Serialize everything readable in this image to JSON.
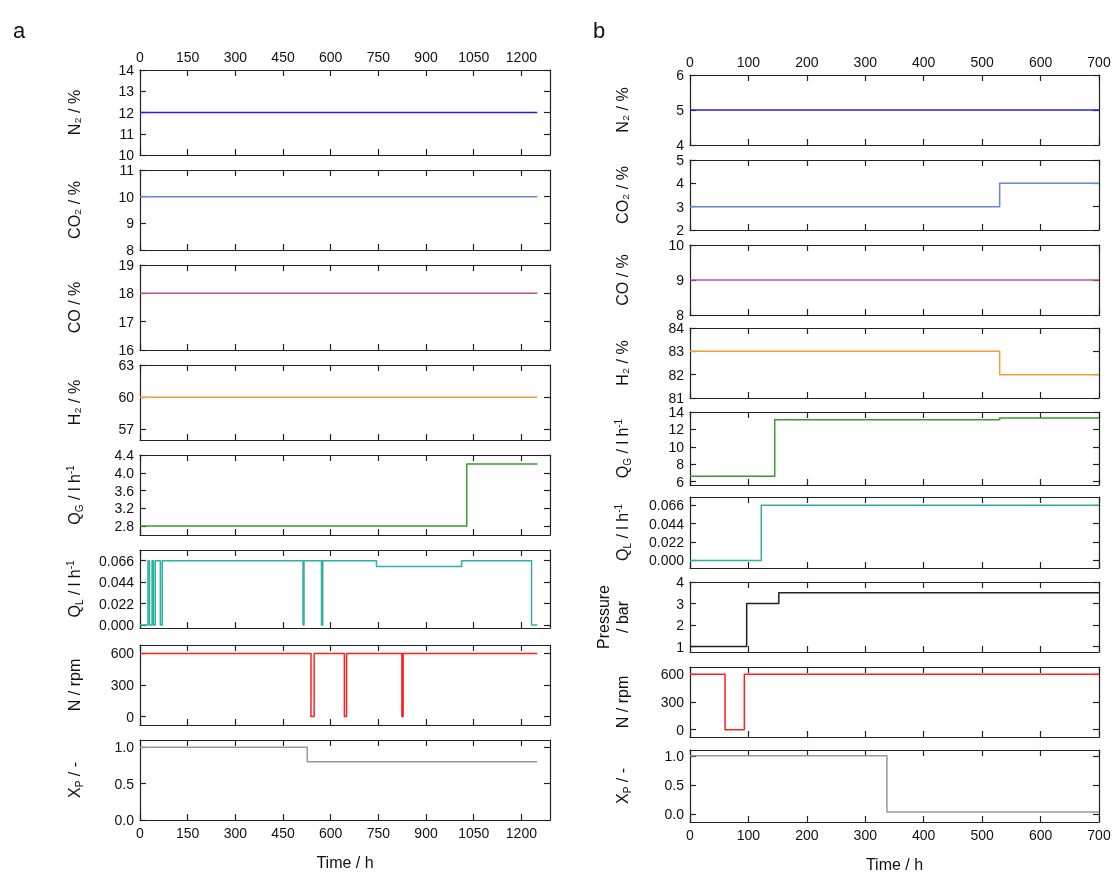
{
  "chart_data": [
    {
      "type": "step",
      "title": "a",
      "ylabel": "N₂ / %",
      "x2lim": [
        0,
        1290
      ],
      "x2ticks": [
        0,
        150,
        300,
        450,
        600,
        750,
        900,
        1050,
        1200
      ],
      "xlim": [
        0,
        1290
      ],
      "xticks": [
        0,
        150,
        300,
        450,
        600,
        750,
        900,
        1050,
        1200
      ],
      "tick_labels": "y",
      "ylim": [
        10,
        14
      ],
      "yticks": [
        10,
        11,
        12,
        13,
        14
      ],
      "x": [
        0,
        1250
      ],
      "values": [
        12,
        12
      ],
      "color": "#2020f0"
    },
    {
      "type": "step",
      "ylabel": "CO₂ / %",
      "xlim": [
        0,
        1290
      ],
      "xticks": [
        0,
        150,
        300,
        450,
        600,
        750,
        900,
        1050,
        1200
      ],
      "tick_labels": "y",
      "ylim": [
        8,
        11
      ],
      "yticks": [
        8,
        9,
        10,
        11
      ],
      "x": [
        0,
        1250
      ],
      "values": [
        10,
        10
      ],
      "color": "#6688cc"
    },
    {
      "type": "step",
      "ylabel": "CO / %",
      "xlim": [
        0,
        1290
      ],
      "xticks": [
        0,
        150,
        300,
        450,
        600,
        750,
        900,
        1050,
        1200
      ],
      "tick_labels": "y",
      "ylim": [
        16,
        19
      ],
      "yticks": [
        16,
        17,
        18,
        19
      ],
      "x": [
        0,
        1250
      ],
      "values": [
        18,
        18
      ],
      "color": "#c0509a"
    },
    {
      "type": "step",
      "ylabel": "H₂ / %",
      "xlim": [
        0,
        1290
      ],
      "xticks": [
        0,
        150,
        300,
        450,
        600,
        750,
        900,
        1050,
        1200
      ],
      "tick_labels": "y",
      "ylim": [
        56,
        63
      ],
      "yticks": [
        57,
        60,
        63
      ],
      "x": [
        0,
        1250
      ],
      "values": [
        60,
        60
      ],
      "color": "#f0a030"
    },
    {
      "type": "step",
      "ylabel": "Q$_{G}$ / l h$^{-1}$",
      "xlim": [
        0,
        1290
      ],
      "xticks": [
        0,
        150,
        300,
        450,
        600,
        750,
        900,
        1050,
        1200
      ],
      "tick_labels": "y",
      "ylim": [
        2.6,
        4.4
      ],
      "yticks": [
        2.8,
        3.2,
        3.6,
        {
          "value": 4,
          "label": "4.0"
        },
        4.4
      ],
      "x": [
        0,
        1028,
        1250
      ],
      "values": [
        2.8,
        4.2,
        4.2
      ],
      "color": "#3c9a2c"
    },
    {
      "type": "step",
      "ylabel": "Q$_{L}$ / l h$^{-1}$",
      "xlim": [
        0,
        1290
      ],
      "xticks": [
        0,
        150,
        300,
        450,
        600,
        750,
        900,
        1050,
        1200
      ],
      "tick_labels": "y",
      "ylim": [
        -0.003,
        0.077
      ],
      "yticks": [
        {
          "value": 0,
          "label": "0.000"
        },
        0.022,
        0.044,
        0.066
      ],
      "x": [
        0,
        25,
        30,
        38,
        42,
        48,
        64,
        70,
        513,
        516,
        571,
        575,
        744,
        1012,
        1232,
        1250
      ],
      "values": [
        0,
        0.066,
        0,
        0.066,
        0,
        0.066,
        0,
        0.066,
        0,
        0.066,
        0,
        0.066,
        0.06,
        0.066,
        0,
        0
      ],
      "color": "#30b0a0"
    },
    {
      "type": "step",
      "ylabel": "N / rpm",
      "xlim": [
        0,
        1290
      ],
      "xticks": [
        0,
        150,
        300,
        450,
        600,
        750,
        900,
        1050,
        1200
      ],
      "tick_labels": "y",
      "ylim": [
        -80,
        680
      ],
      "yticks": [
        0,
        300,
        600
      ],
      "x": [
        0,
        538,
        548,
        643,
        650,
        824,
        828,
        1250
      ],
      "values": [
        600,
        0,
        600,
        0,
        600,
        0,
        600,
        600
      ],
      "color": "#ff2020"
    },
    {
      "type": "step",
      "ylabel": "X$_{P}$ / -",
      "xlabel": "Time / h",
      "xlim": [
        0,
        1290
      ],
      "xticks": [
        0,
        150,
        300,
        450,
        600,
        750,
        900,
        1050,
        1200
      ],
      "ylim": [
        0,
        1.1
      ],
      "yticks": [
        {
          "value": 0,
          "label": "0.0"
        },
        0.5,
        {
          "value": 1,
          "label": "1.0"
        }
      ],
      "x": [
        0,
        526,
        1250
      ],
      "values": [
        1,
        0.8,
        0.8
      ],
      "color": "#999999"
    },
    {
      "type": "step",
      "title": "b",
      "ylabel": "N₂ / %",
      "x2lim": [
        0,
        700
      ],
      "x2ticks": [
        0,
        100,
        200,
        300,
        400,
        500,
        600,
        700
      ],
      "xlim": [
        0,
        700
      ],
      "xticks": [
        0,
        100,
        200,
        300,
        400,
        500,
        600,
        700
      ],
      "tick_labels": "y",
      "ylim": [
        4,
        6
      ],
      "yticks": [
        4,
        5,
        6
      ],
      "x": [
        0,
        700
      ],
      "values": [
        5,
        5
      ],
      "color": "#2020f0"
    },
    {
      "type": "step",
      "ylabel": "CO₂ / %",
      "xlim": [
        0,
        700
      ],
      "xticks": [
        0,
        100,
        200,
        300,
        400,
        500,
        600,
        700
      ],
      "tick_labels": "y",
      "ylim": [
        2,
        5
      ],
      "yticks": [
        2,
        3,
        4,
        5
      ],
      "x": [
        0,
        530,
        700
      ],
      "values": [
        3,
        4,
        4
      ],
      "color": "#6688cc"
    },
    {
      "type": "step",
      "ylabel": "CO / %",
      "xlim": [
        0,
        700
      ],
      "xticks": [
        0,
        100,
        200,
        300,
        400,
        500,
        600,
        700
      ],
      "tick_labels": "y",
      "ylim": [
        8,
        10
      ],
      "yticks": [
        8,
        9,
        10
      ],
      "x": [
        0,
        700
      ],
      "values": [
        9,
        9
      ],
      "color": "#c0509a"
    },
    {
      "type": "step",
      "ylabel": "H₂ / %",
      "xlim": [
        0,
        700
      ],
      "xticks": [
        0,
        100,
        200,
        300,
        400,
        500,
        600,
        700
      ],
      "tick_labels": "y",
      "ylim": [
        81,
        84
      ],
      "yticks": [
        81,
        82,
        83,
        84
      ],
      "x": [
        0,
        530,
        700
      ],
      "values": [
        83,
        82,
        82
      ],
      "color": "#f0a030"
    },
    {
      "type": "step",
      "ylabel": "Q$_{G}$ / l h$^{-1}$",
      "xlim": [
        0,
        700
      ],
      "xticks": [
        0,
        100,
        200,
        300,
        400,
        500,
        600,
        700
      ],
      "tick_labels": "y",
      "ylim": [
        5.6,
        14
      ],
      "yticks": [
        6,
        8,
        10,
        12,
        14
      ],
      "x": [
        0,
        145,
        530,
        700
      ],
      "values": [
        6.6,
        13.1,
        13.3,
        13.3
      ],
      "color": "#3c9a2c"
    },
    {
      "type": "step",
      "ylabel": "Q$_{L}$ / l h$^{-1}$",
      "xlim": [
        0,
        700
      ],
      "xticks": [
        0,
        100,
        200,
        300,
        400,
        500,
        600,
        700
      ],
      "tick_labels": "y",
      "ylim": [
        -0.009,
        0.076
      ],
      "yticks": [
        {
          "value": 0,
          "label": "0.000"
        },
        0.022,
        0.044,
        0.066
      ],
      "x": [
        0,
        122,
        700
      ],
      "values": [
        0,
        0.066,
        0.066
      ],
      "color": "#30b0a0"
    },
    {
      "type": "step",
      "ylabel": "Pressure / bar",
      "xlim": [
        0,
        700
      ],
      "xticks": [
        0,
        100,
        200,
        300,
        400,
        500,
        600,
        700
      ],
      "tick_labels": "y",
      "ylim": [
        0.75,
        4
      ],
      "yticks": [
        1,
        2,
        3,
        4
      ],
      "x": [
        0,
        97,
        152,
        700
      ],
      "values": [
        1,
        3,
        3.5,
        3.5
      ],
      "color": "#222222"
    },
    {
      "type": "step",
      "ylabel": "N / rpm",
      "xlim": [
        0,
        700
      ],
      "xticks": [
        0,
        100,
        200,
        300,
        400,
        500,
        600,
        700
      ],
      "tick_labels": "y",
      "ylim": [
        -80,
        680
      ],
      "yticks": [
        0,
        300,
        600
      ],
      "x": [
        0,
        60,
        93,
        700
      ],
      "values": [
        600,
        0,
        600,
        600
      ],
      "color": "#ff2020"
    },
    {
      "type": "step",
      "ylabel": "X$_{P}$ / -",
      "xlabel": "Time / h",
      "xlim": [
        0,
        700
      ],
      "xticks": [
        0,
        100,
        200,
        300,
        400,
        500,
        600,
        700
      ],
      "ylim": [
        -0.13,
        1.1
      ],
      "yticks": [
        {
          "value": 0,
          "label": "0.0"
        },
        0.5,
        {
          "value": 1,
          "label": "1.0"
        }
      ],
      "x": [
        0,
        337,
        700
      ],
      "values": [
        1,
        0.04,
        0.04
      ],
      "color": "#999999"
    }
  ]
}
